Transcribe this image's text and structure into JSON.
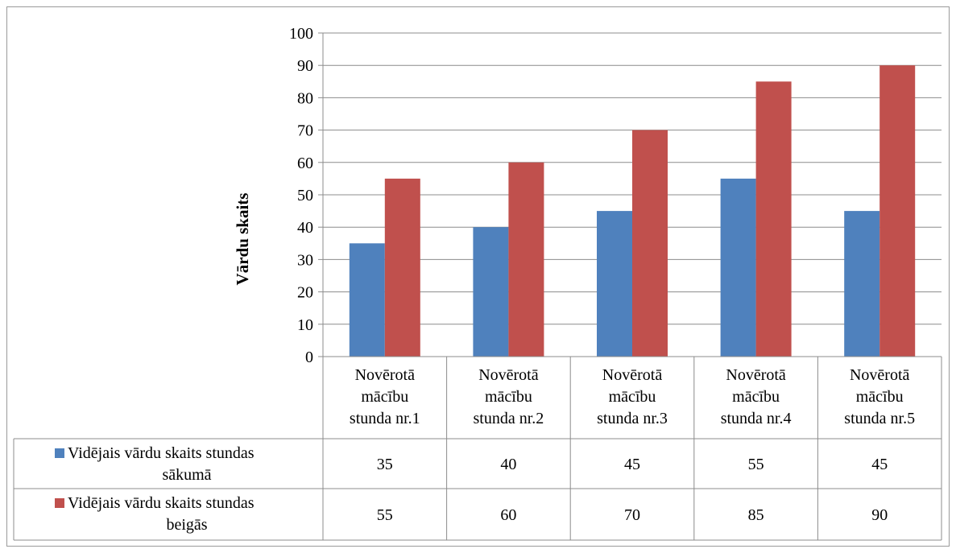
{
  "chart_data": {
    "type": "bar",
    "title": "",
    "xlabel": "",
    "ylabel": "Vārdu skaits",
    "ylim": [
      0,
      100
    ],
    "yticks": [
      0,
      10,
      20,
      30,
      40,
      50,
      60,
      70,
      80,
      90,
      100
    ],
    "grid": true,
    "legend": "data table",
    "categories": [
      [
        "Novērotā",
        "mācību",
        "stunda nr.1"
      ],
      [
        "Novērotā",
        "mācību",
        "stunda nr.2"
      ],
      [
        "Novērotā",
        "mācību",
        "stunda nr.3"
      ],
      [
        "Novērotā",
        "mācību",
        "stunda nr.4"
      ],
      [
        "Novērotā",
        "mācību",
        "stunda nr.5"
      ]
    ],
    "series": [
      {
        "name": [
          "Vidējais vārdu skaits stundas",
          "sākumā"
        ],
        "color": "#4f81bd",
        "values": [
          35,
          40,
          45,
          55,
          45
        ]
      },
      {
        "name": [
          "Vidējais vārdu skaits stundas",
          "beigās"
        ],
        "color": "#c0504d",
        "values": [
          55,
          60,
          70,
          85,
          90
        ]
      }
    ]
  }
}
